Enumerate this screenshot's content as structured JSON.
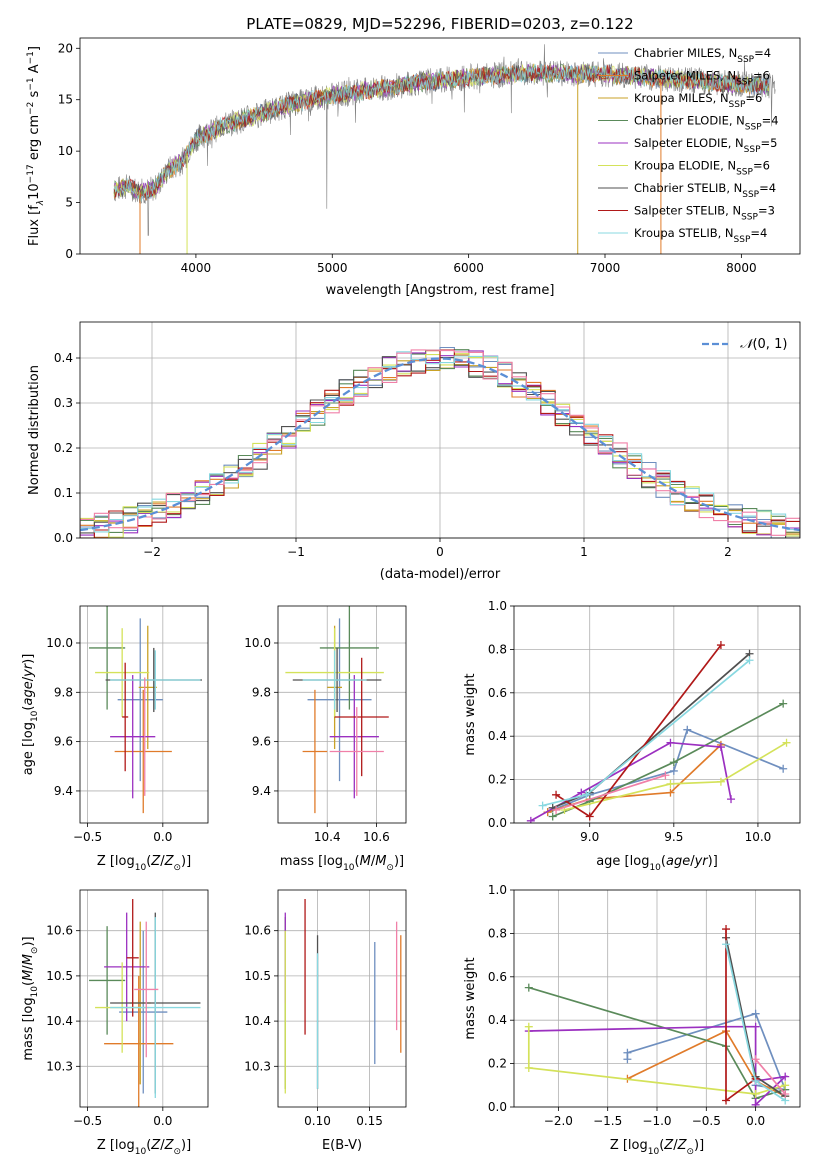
{
  "title": "PLATE=0829, MJD=52296, FIBERID=0203, z=0.122",
  "colors": [
    "#6f8fbf",
    "#e07b2a",
    "#c9a227",
    "#5a8a5a",
    "#9b30c0",
    "#d4e25a",
    "#505050",
    "#b01818",
    "#88d8e0"
  ],
  "chart_data": [
    {
      "type": "line",
      "id": "spectrum",
      "xlabel": "wavelength [Angstrom, rest frame]",
      "ylabel": "Flux [f",
      "ylabel_tail": "10",
      "xlim": [
        3150,
        8430
      ],
      "ylim": [
        0,
        21
      ],
      "xticks": [
        "4000",
        "5000",
        "6000",
        "7000",
        "8000"
      ],
      "xtick_values": [
        4000,
        5000,
        6000,
        7000,
        8000
      ],
      "yticks": [
        "0",
        "5",
        "10",
        "15",
        "20"
      ],
      "ytick_values": [
        0,
        5,
        10,
        15,
        20
      ],
      "series": [
        {
          "name": "Chabrier MILES, N",
          "nssp": "=4",
          "color": "#6f8fbf"
        },
        {
          "name": "Salpeter MILES, N",
          "nssp": "=6",
          "color": "#e07b2a"
        },
        {
          "name": "Kroupa MILES, N",
          "nssp": "=6",
          "color": "#c9a227"
        },
        {
          "name": "Chabrier ELODIE, N",
          "nssp": "=4",
          "color": "#5a8a5a"
        },
        {
          "name": "Salpeter ELODIE, N",
          "nssp": "=5",
          "color": "#9b30c0"
        },
        {
          "name": "Kroupa ELODIE, N",
          "nssp": "=6",
          "color": "#d4e25a"
        },
        {
          "name": "Chabrier STELIB, N",
          "nssp": "=4",
          "color": "#505050"
        },
        {
          "name": "Salpeter STELIB, N",
          "nssp": "=3",
          "color": "#b01818"
        },
        {
          "name": "Kroupa STELIB, N",
          "nssp": "=4",
          "color": "#88d8e0"
        }
      ],
      "subscript": "SSP",
      "continuum": [
        [
          3400,
          6.2
        ],
        [
          3500,
          6.6
        ],
        [
          3600,
          6.0
        ],
        [
          3700,
          6.4
        ],
        [
          3800,
          8.2
        ],
        [
          3900,
          9.0
        ],
        [
          4000,
          11.2
        ],
        [
          4200,
          12.5
        ],
        [
          4400,
          13.3
        ],
        [
          4700,
          14.6
        ],
        [
          5000,
          15.4
        ],
        [
          5300,
          16.0
        ],
        [
          5600,
          16.6
        ],
        [
          6000,
          17.2
        ],
        [
          6500,
          17.6
        ],
        [
          7000,
          17.5
        ],
        [
          7500,
          17.0
        ],
        [
          8000,
          16.5
        ],
        [
          8200,
          16.3
        ]
      ],
      "data_start_x": 3400,
      "data_end_x": 8200,
      "obs_end_x": 8250,
      "dips": [
        [
          3935,
          0,
          5
        ],
        [
          6800,
          0,
          2
        ],
        [
          7410,
          0,
          1
        ],
        [
          3590,
          0,
          0.2
        ]
      ]
    },
    {
      "type": "histogram",
      "id": "residuals",
      "xlabel": "(data-model)/error",
      "ylabel": "Normed distribution",
      "xlim": [
        -2.5,
        2.5
      ],
      "ylim": [
        0,
        0.48
      ],
      "xticks": [
        "−2",
        "−1",
        "0",
        "1",
        "2"
      ],
      "xtick_values": [
        -2,
        -1,
        0,
        1,
        2
      ],
      "yticks": [
        "0.0",
        "0.1",
        "0.2",
        "0.3",
        "0.4"
      ],
      "ytick_values": [
        0,
        0.1,
        0.2,
        0.3,
        0.4
      ],
      "legend": "(0, 1)",
      "legend_prefix": "𝒩",
      "bin_width": 0.1,
      "gaussian": {
        "mu": 0,
        "sigma": 1
      }
    },
    {
      "type": "scatter",
      "id": "age-z",
      "xlabel": "Z [log",
      "ylabel": "age  [log",
      "xlim": [
        -0.55,
        0.3
      ],
      "ylim": [
        9.27,
        10.15
      ],
      "xticks": [
        "−0.5",
        "0.0"
      ],
      "xtick_values": [
        -0.5,
        0.0
      ],
      "yticks": [
        "9.4",
        "9.6",
        "9.8",
        "10.0"
      ],
      "ytick_values": [
        9.4,
        9.6,
        9.8,
        10.0
      ],
      "points": [
        {
          "x": -0.15,
          "y": 9.77,
          "xerr": 0.15,
          "yerr": 0.33,
          "color": "#6f8fbf"
        },
        {
          "x": -0.13,
          "y": 9.56,
          "xerr": 0.19,
          "yerr": 0.25,
          "color": "#e07b2a"
        },
        {
          "x": -0.1,
          "y": 9.82,
          "xerr": 0.06,
          "yerr": 0.25,
          "color": "#c9a227"
        },
        {
          "x": -0.37,
          "y": 9.98,
          "xerr": 0.12,
          "yerr": 0.25,
          "color": "#5a8a5a"
        },
        {
          "x": -0.2,
          "y": 9.62,
          "xerr": 0.15,
          "yerr": 0.25,
          "color": "#9b30c0"
        },
        {
          "x": -0.27,
          "y": 9.88,
          "xerr": 0.18,
          "yerr": 0.18,
          "color": "#d4e25a"
        },
        {
          "x": -0.06,
          "y": 9.85,
          "xerr": 0.32,
          "yerr": 0.13,
          "color": "#505050"
        },
        {
          "x": -0.25,
          "y": 9.7,
          "xerr": 0.02,
          "yerr": 0.22,
          "color": "#b01818"
        },
        {
          "x": -0.05,
          "y": 9.85,
          "xerr": 0.3,
          "yerr": 0.12,
          "color": "#88d8e0"
        },
        {
          "x": -0.12,
          "y": 9.62,
          "xerr": 0.0,
          "yerr": 0.24,
          "color": "#f080a8"
        }
      ]
    },
    {
      "type": "scatter",
      "id": "age-mass",
      "xlabel": "mass [log",
      "xlim": [
        10.2,
        10.72
      ],
      "ylim": [
        9.27,
        10.15
      ],
      "xticks": [
        "10.4",
        "10.6"
      ],
      "xtick_values": [
        10.4,
        10.6
      ],
      "yticks": [
        "9.4",
        "9.6",
        "9.8",
        "10.0"
      ],
      "ytick_values": [
        9.4,
        9.6,
        9.8,
        10.0
      ],
      "points": [
        {
          "x": 10.45,
          "y": 9.77,
          "xerr": 0.13,
          "yerr": 0.33,
          "color": "#6f8fbf"
        },
        {
          "x": 10.35,
          "y": 9.56,
          "xerr": 0.05,
          "yerr": 0.25,
          "color": "#e07b2a"
        },
        {
          "x": 10.43,
          "y": 9.82,
          "xerr": 0.03,
          "yerr": 0.25,
          "color": "#c9a227"
        },
        {
          "x": 10.49,
          "y": 9.98,
          "xerr": 0.12,
          "yerr": 0.25,
          "color": "#5a8a5a"
        },
        {
          "x": 10.51,
          "y": 9.62,
          "xerr": 0.1,
          "yerr": 0.25,
          "color": "#9b30c0"
        },
        {
          "x": 10.43,
          "y": 9.88,
          "xerr": 0.2,
          "yerr": 0.18,
          "color": "#d4e25a"
        },
        {
          "x": 10.44,
          "y": 9.85,
          "xerr": 0.18,
          "yerr": 0.13,
          "color": "#505050"
        },
        {
          "x": 10.54,
          "y": 9.7,
          "xerr": 0.11,
          "yerr": 0.24,
          "color": "#b01818"
        },
        {
          "x": 10.43,
          "y": 9.85,
          "xerr": 0.13,
          "yerr": 0.12,
          "color": "#88d8e0"
        },
        {
          "x": 10.52,
          "y": 9.56,
          "xerr": 0.11,
          "yerr": 0.18,
          "color": "#f080a8"
        }
      ]
    },
    {
      "type": "line",
      "id": "mw-age",
      "xlabel": "age  [log",
      "ylabel": "mass weight",
      "xlim": [
        8.55,
        10.25
      ],
      "ylim": [
        0,
        1.0
      ],
      "xticks": [
        "9.0",
        "9.5",
        "10.0"
      ],
      "xtick_values": [
        9.0,
        9.5,
        10.0
      ],
      "yticks": [
        "0.0",
        "0.2",
        "0.4",
        "0.6",
        "0.8",
        "1.0"
      ],
      "ytick_values": [
        0,
        0.2,
        0.4,
        0.6,
        0.8,
        1.0
      ],
      "series": [
        {
          "color": "#6f8fbf",
          "points": [
            [
              8.75,
              0.05
            ],
            [
              9.0,
              0.13
            ],
            [
              9.5,
              0.24
            ],
            [
              9.58,
              0.43
            ],
            [
              10.15,
              0.25
            ]
          ]
        },
        {
          "color": "#e07b2a",
          "points": [
            [
              8.75,
              0.05
            ],
            [
              9.0,
              0.11
            ],
            [
              9.48,
              0.14
            ],
            [
              9.78,
              0.36
            ]
          ]
        },
        {
          "color": "#5a8a5a",
          "points": [
            [
              8.78,
              0.03
            ],
            [
              9.0,
              0.1
            ],
            [
              9.5,
              0.28
            ],
            [
              10.15,
              0.55
            ]
          ]
        },
        {
          "color": "#9b30c0",
          "points": [
            [
              8.65,
              0.01
            ],
            [
              8.95,
              0.14
            ],
            [
              9.48,
              0.37
            ],
            [
              9.78,
              0.35
            ],
            [
              9.84,
              0.11
            ]
          ]
        },
        {
          "color": "#d4e25a",
          "points": [
            [
              8.85,
              0.06
            ],
            [
              9.48,
              0.18
            ],
            [
              9.78,
              0.19
            ],
            [
              10.17,
              0.37
            ]
          ]
        },
        {
          "color": "#505050",
          "points": [
            [
              8.78,
              0.07
            ],
            [
              9.0,
              0.14
            ],
            [
              9.95,
              0.78
            ]
          ]
        },
        {
          "color": "#b01818",
          "points": [
            [
              8.8,
              0.13
            ],
            [
              9.0,
              0.03
            ],
            [
              9.78,
              0.82
            ]
          ]
        },
        {
          "color": "#88d8e0",
          "points": [
            [
              8.72,
              0.08
            ],
            [
              8.98,
              0.13
            ],
            [
              9.95,
              0.75
            ]
          ]
        },
        {
          "color": "#f080a8",
          "points": [
            [
              8.8,
              0.06
            ],
            [
              9.45,
              0.22
            ]
          ]
        }
      ]
    },
    {
      "type": "scatter",
      "id": "mass-z",
      "xlabel": "Z [log",
      "ylabel": "mass [log",
      "xlim": [
        -0.55,
        0.3
      ],
      "ylim": [
        10.21,
        10.69
      ],
      "xticks": [
        "−0.5",
        "0.0"
      ],
      "xtick_values": [
        -0.5,
        0.0
      ],
      "yticks": [
        "10.3",
        "10.4",
        "10.5",
        "10.6"
      ],
      "ytick_values": [
        10.3,
        10.4,
        10.5,
        10.6
      ],
      "points": [
        {
          "x": -0.13,
          "y": 10.42,
          "xerr": 0.16,
          "yerr": 0.18,
          "color": "#6f8fbf"
        },
        {
          "x": -0.16,
          "y": 10.35,
          "xerr": 0.23,
          "yerr": 0.15,
          "color": "#e07b2a"
        },
        {
          "x": -0.15,
          "y": 10.44,
          "xerr": 0.07,
          "yerr": 0.18,
          "color": "#c9a227"
        },
        {
          "x": -0.37,
          "y": 10.49,
          "xerr": 0.12,
          "yerr": 0.12,
          "color": "#5a8a5a"
        },
        {
          "x": -0.24,
          "y": 10.52,
          "xerr": 0.15,
          "yerr": 0.12,
          "color": "#9b30c0"
        },
        {
          "x": -0.27,
          "y": 10.43,
          "xerr": 0.18,
          "yerr": 0.1,
          "color": "#d4e25a"
        },
        {
          "x": -0.05,
          "y": 10.44,
          "xerr": 0.3,
          "yerr": 0.2,
          "color": "#505050"
        },
        {
          "x": -0.2,
          "y": 10.54,
          "xerr": 0.04,
          "yerr": 0.13,
          "color": "#b01818"
        },
        {
          "x": -0.05,
          "y": 10.43,
          "xerr": 0.3,
          "yerr": 0.2,
          "color": "#88d8e0"
        },
        {
          "x": -0.11,
          "y": 10.47,
          "xerr": 0.08,
          "yerr": 0.15,
          "color": "#f080a8"
        }
      ]
    },
    {
      "type": "scatter",
      "id": "mass-ebv",
      "xlabel": "E(B-V)",
      "xlim": [
        0.062,
        0.185
      ],
      "ylim": [
        10.21,
        10.69
      ],
      "xticks": [
        "0.10",
        "0.15"
      ],
      "xtick_values": [
        0.1,
        0.15
      ],
      "yticks": [
        "10.3",
        "10.4",
        "10.5",
        "10.6"
      ],
      "ytick_values": [
        10.3,
        10.4,
        10.5,
        10.6
      ],
      "points": [
        {
          "x": 0.155,
          "y": 10.44,
          "xerr": 0,
          "yerr": 0.135,
          "color": "#6f8fbf"
        },
        {
          "x": 0.18,
          "y": 10.46,
          "xerr": 0,
          "yerr": 0.13,
          "color": "#e07b2a"
        },
        {
          "x": 0.069,
          "y": 10.44,
          "xerr": 0,
          "yerr": 0.19,
          "color": "#c9a227"
        },
        {
          "x": 0.069,
          "y": 10.44,
          "xerr": 0,
          "yerr": 0.19,
          "color": "#5a8a5a"
        },
        {
          "x": 0.069,
          "y": 10.54,
          "xerr": 0,
          "yerr": 0.1,
          "color": "#9b30c0"
        },
        {
          "x": 0.069,
          "y": 10.42,
          "xerr": 0,
          "yerr": 0.18,
          "color": "#d4e25a"
        },
        {
          "x": 0.1,
          "y": 10.42,
          "xerr": 0,
          "yerr": 0.17,
          "color": "#505050"
        },
        {
          "x": 0.088,
          "y": 10.52,
          "xerr": 0,
          "yerr": 0.15,
          "color": "#b01818"
        },
        {
          "x": 0.1,
          "y": 10.4,
          "xerr": 0,
          "yerr": 0.15,
          "color": "#88d8e0"
        },
        {
          "x": 0.176,
          "y": 10.5,
          "xerr": 0,
          "yerr": 0.12,
          "color": "#f080a8"
        }
      ]
    },
    {
      "type": "line",
      "id": "mw-z",
      "xlabel": "Z [log",
      "ylabel": "mass weight",
      "xlim": [
        -2.45,
        0.45
      ],
      "ylim": [
        0,
        1.0
      ],
      "xticks": [
        "−2.0",
        "−1.5",
        "−1.0",
        "−0.5",
        "0.0"
      ],
      "xtick_values": [
        -2.0,
        -1.5,
        -1.0,
        -0.5,
        0.0
      ],
      "yticks": [
        "0.0",
        "0.2",
        "0.4",
        "0.6",
        "0.8",
        "1.0"
      ],
      "ytick_values": [
        0,
        0.2,
        0.4,
        0.6,
        0.8,
        1.0
      ],
      "series": [
        {
          "color": "#6f8fbf",
          "points": [
            [
              -1.3,
              0.22
            ],
            [
              -1.3,
              0.25
            ],
            [
              0.0,
              0.43
            ],
            [
              0.3,
              0.08
            ],
            [
              0.0,
              0.1
            ]
          ]
        },
        {
          "color": "#e07b2a",
          "points": [
            [
              -1.3,
              0.13
            ],
            [
              -0.3,
              0.35
            ],
            [
              0.0,
              0.12
            ],
            [
              0.3,
              0.05
            ]
          ]
        },
        {
          "color": "#5a8a5a",
          "points": [
            [
              -2.3,
              0.55
            ],
            [
              -0.3,
              0.28
            ],
            [
              0.0,
              0.04
            ],
            [
              0.3,
              0.08
            ]
          ]
        },
        {
          "color": "#9b30c0",
          "points": [
            [
              -2.3,
              0.35
            ],
            [
              -0.3,
              0.37
            ],
            [
              0.0,
              0.37
            ],
            [
              0.0,
              0.01
            ],
            [
              0.3,
              0.14
            ],
            [
              0.0,
              0.12
            ]
          ]
        },
        {
          "color": "#d4e25a",
          "points": [
            [
              -2.3,
              0.37
            ],
            [
              -2.3,
              0.18
            ],
            [
              0.0,
              0.06
            ],
            [
              0.3,
              0.1
            ]
          ]
        },
        {
          "color": "#505050",
          "points": [
            [
              -0.3,
              0.78
            ],
            [
              0.0,
              0.14
            ],
            [
              0.3,
              0.05
            ]
          ]
        },
        {
          "color": "#b01818",
          "points": [
            [
              -0.3,
              0.82
            ],
            [
              -0.3,
              0.03
            ],
            [
              0.0,
              0.13
            ]
          ]
        },
        {
          "color": "#88d8e0",
          "points": [
            [
              -0.3,
              0.75
            ],
            [
              0.0,
              0.12
            ],
            [
              0.3,
              0.03
            ]
          ]
        },
        {
          "color": "#f080a8",
          "points": [
            [
              0.0,
              0.22
            ],
            [
              0.3,
              0.06
            ]
          ]
        }
      ]
    }
  ]
}
